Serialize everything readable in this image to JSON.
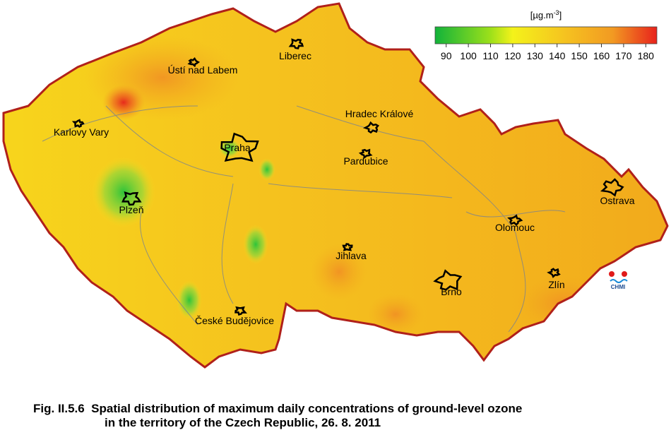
{
  "legend": {
    "unit": "[µg.m",
    "unit_exponent": "-3",
    "unit_close": "]",
    "lim": [
      85,
      185
    ],
    "ticks": [
      90,
      100,
      110,
      120,
      130,
      140,
      150,
      160,
      170,
      180
    ]
  },
  "cities": [
    "Liberec",
    "Ústí nad Labem",
    "Karlovy Vary",
    "Praha",
    "Hradec Králové",
    "Pardubice",
    "Plzeň",
    "Ostrava",
    "Olomouc",
    "Jihlava",
    "Brno",
    "Zlín",
    "České Budějovice"
  ],
  "logo": "CHMI",
  "caption": {
    "line1": "Fig. II.5.6  Spatial distribution of maximum daily concentrations of ground-level ozone",
    "line2": "in the territory of the Czech Republic, 26. 8. 2011"
  }
}
